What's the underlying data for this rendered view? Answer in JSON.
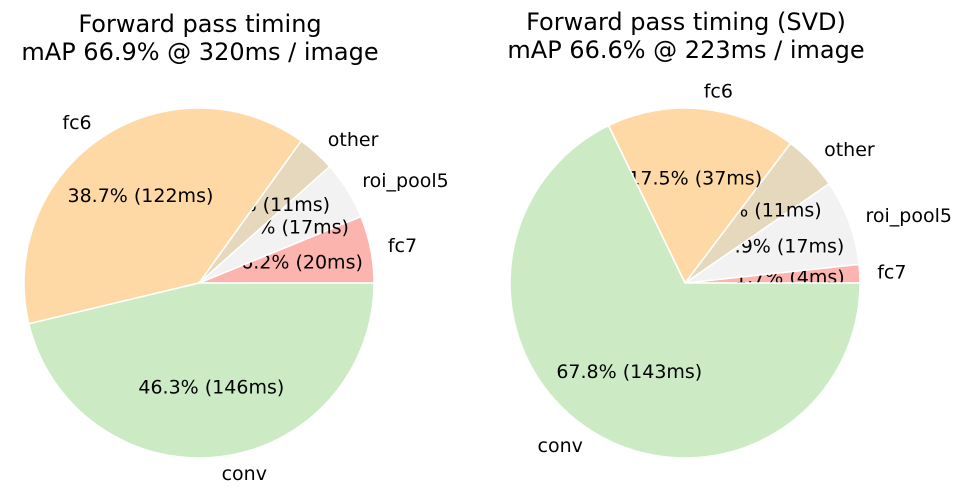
{
  "chart_data": [
    {
      "type": "pie",
      "title": "Forward pass timing",
      "subtitle": "mAP 66.9% @ 320ms / image",
      "slices": [
        {
          "label": "fc7",
          "percent": 6.2,
          "value_text": "6.2% (20ms)",
          "color": "#fbb4ae"
        },
        {
          "label": "roi_pool5",
          "percent": 5.4,
          "value_text": "5.4% (17ms)",
          "color": "#f2f2f2"
        },
        {
          "label": "other",
          "percent": 3.5,
          "value_text": "3.5% (11ms)",
          "color": "#e5d8bd"
        },
        {
          "label": "fc6",
          "percent": 38.7,
          "value_text": "38.7% (122ms)",
          "color": "#fed9a6"
        },
        {
          "label": "conv",
          "percent": 46.3,
          "value_text": "46.3% (146ms)",
          "color": "#ccebc5"
        }
      ]
    },
    {
      "type": "pie",
      "title": "Forward pass timing (SVD)",
      "subtitle": "mAP 66.6% @ 223ms / image",
      "slices": [
        {
          "label": "fc7",
          "percent": 1.7,
          "value_text": "1.7% (4ms)",
          "color": "#fbb4ae"
        },
        {
          "label": "roi_pool5",
          "percent": 7.9,
          "value_text": "7.9% (17ms)",
          "color": "#f2f2f2"
        },
        {
          "label": "other",
          "percent": 5.1,
          "value_text": "5.1% (11ms)",
          "color": "#e5d8bd"
        },
        {
          "label": "fc6",
          "percent": 17.5,
          "value_text": "17.5% (37ms)",
          "color": "#fed9a6"
        },
        {
          "label": "conv",
          "percent": 67.8,
          "value_text": "67.8% (143ms)",
          "color": "#ccebc5"
        }
      ]
    }
  ]
}
